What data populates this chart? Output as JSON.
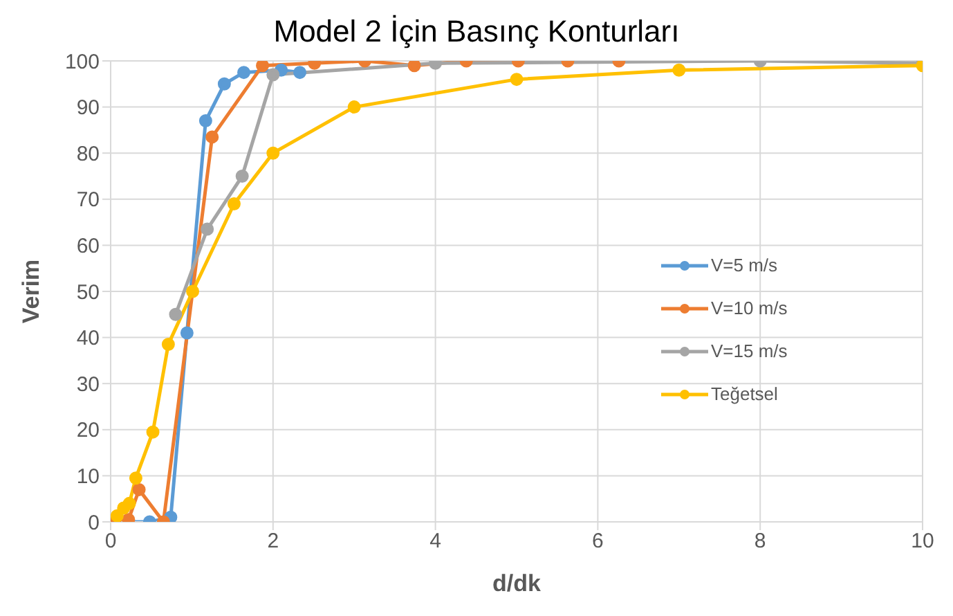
{
  "chart_data": {
    "type": "line",
    "title": "Model 2 İçin Basınç Konturları",
    "xlabel": "d/dk",
    "ylabel": "Verim",
    "xlim": [
      0,
      10
    ],
    "xticks": [
      0,
      2,
      4,
      6,
      8,
      10
    ],
    "ylim": [
      0,
      100
    ],
    "yticks": [
      0,
      10,
      20,
      30,
      40,
      50,
      60,
      70,
      80,
      90,
      100
    ],
    "grid": true,
    "legend": "right",
    "marker": "circle",
    "series": [
      {
        "name": "V=5 m/s",
        "color": "#5b9bd5",
        "x": [
          0.05,
          0.25,
          0.48,
          0.74,
          0.94,
          1.17,
          1.4,
          1.64,
          1.87,
          2.1,
          2.33
        ],
        "values": [
          0,
          null,
          0,
          1,
          41,
          87,
          95,
          97.5,
          null,
          98,
          97.5
        ]
      },
      {
        "name": "V=10 m/s",
        "color": "#ed7d31",
        "x": [
          0.05,
          0.22,
          0.35,
          0.65,
          1.25,
          1.87,
          2.51,
          3.13,
          3.74,
          4.38,
          5.02,
          5.63,
          6.26
        ],
        "values": [
          0,
          0.5,
          7,
          0,
          83.5,
          99,
          99.5,
          100,
          99,
          100,
          100,
          100,
          100
        ]
      },
      {
        "name": "V=15 m/s",
        "color": "#a5a5a5",
        "x": [
          0.8,
          1.19,
          1.62,
          2,
          4,
          8,
          10
        ],
        "values": [
          45,
          63.5,
          75,
          97,
          99.5,
          100,
          99.5
        ]
      },
      {
        "name": "Teğetsel",
        "color": "#ffc000",
        "x": [
          0.08,
          0.16,
          0.23,
          0.31,
          0.52,
          0.71,
          1.01,
          1.52,
          2,
          3,
          5,
          7,
          10
        ],
        "values": [
          1.3,
          3,
          4,
          9.5,
          19.5,
          38.5,
          50,
          69,
          80,
          90,
          96,
          98,
          99
        ]
      }
    ]
  }
}
